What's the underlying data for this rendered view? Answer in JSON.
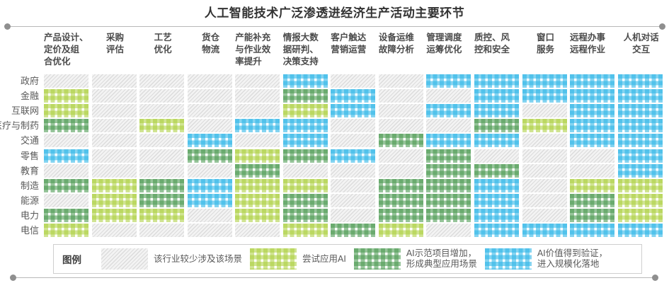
{
  "title": "人工智能技术广泛渗透进经济生产活动主要环节",
  "legend": {
    "label": "图例",
    "items": [
      {
        "key": "none",
        "label": "该行业较少涉及该场景"
      },
      {
        "key": "trial",
        "label": "尝试应用AI"
      },
      {
        "key": "demo",
        "label": "AI示范项目增加，\n形成典型应用场景"
      },
      {
        "key": "scale",
        "label": "AI价值得到验证，\n进入规模化落地"
      }
    ]
  },
  "colors": {
    "trial": "#a9cd39",
    "demo": "#4a9950",
    "scale": "#2cb5e7",
    "none_stripe": "#dcdcdc",
    "title_text": "#333333",
    "header_text": "#4a4a4a",
    "row_text": "#595959"
  },
  "chart_data": {
    "type": "heatmap",
    "title": "人工智能技术广泛渗透进经济生产活动主要环节",
    "legend_position": "bottom",
    "columns": [
      {
        "label": "产品设计、\n定价及组\n合优化",
        "align": "left"
      },
      {
        "label": "采购\n评估",
        "align": "center"
      },
      {
        "label": "工艺\n优化",
        "align": "center"
      },
      {
        "label": "货仓\n物流",
        "align": "center"
      },
      {
        "label": "产能补充\n与作业效\n率提升",
        "align": "left"
      },
      {
        "label": "情报大数\n据研判、\n决策支持",
        "align": "left"
      },
      {
        "label": "客户触达\n营销运营",
        "align": "left"
      },
      {
        "label": "设备运维\n故障分析",
        "align": "left"
      },
      {
        "label": "管理调度\n运筹优化",
        "align": "left"
      },
      {
        "label": "质控、风\n控和安全",
        "align": "left"
      },
      {
        "label": "窗口\n服务",
        "align": "center"
      },
      {
        "label": "远程办事\n远程作业",
        "align": "left"
      },
      {
        "label": "人机对话\n交互",
        "align": "center"
      }
    ],
    "rows": [
      "政府",
      "金融",
      "互联网",
      "医疗与制药",
      "交通",
      "零售",
      "教育",
      "制造",
      "能源",
      "电力",
      "电信"
    ],
    "categories": {
      "none": "该行业较少涉及该场景",
      "trial": "尝试应用AI",
      "demo": "AI示范项目增加，形成典型应用场景",
      "scale": "AI价值得到验证，进入规模化落地"
    },
    "matrix": [
      [
        "none",
        "none",
        "none",
        "none",
        "none",
        "scale",
        "none",
        "none",
        "scale",
        "scale",
        "scale",
        "scale",
        "scale"
      ],
      [
        "trial",
        "none",
        "none",
        "none",
        "none",
        "demo",
        "scale",
        "none",
        "none",
        "scale",
        "scale",
        "scale",
        "scale"
      ],
      [
        "trial",
        "none",
        "none",
        "none",
        "none",
        "trial",
        "scale",
        "none",
        "scale",
        "scale",
        "none",
        "scale",
        "scale"
      ],
      [
        "demo",
        "none",
        "trial",
        "none",
        "scale",
        "scale",
        "none",
        "none",
        "none",
        "demo",
        "trial",
        "scale",
        "scale"
      ],
      [
        "none",
        "none",
        "none",
        "scale",
        "none",
        "scale",
        "none",
        "demo",
        "scale",
        "scale",
        "none",
        "scale",
        "scale"
      ],
      [
        "scale",
        "none",
        "none",
        "demo",
        "trial",
        "demo",
        "scale",
        "none",
        "demo",
        "none",
        "none",
        "none",
        "scale"
      ],
      [
        "none",
        "none",
        "none",
        "none",
        "demo",
        "none",
        "none",
        "none",
        "demo",
        "demo",
        "none",
        "none",
        "scale"
      ],
      [
        "demo",
        "trial",
        "demo",
        "scale",
        "trial",
        "trial",
        "none",
        "demo",
        "demo",
        "scale",
        "none",
        "trial",
        "trial"
      ],
      [
        "none",
        "trial",
        "demo",
        "scale",
        "trial",
        "demo",
        "none",
        "demo",
        "demo",
        "scale",
        "none",
        "demo",
        "trial"
      ],
      [
        "demo",
        "trial",
        "trial",
        "none",
        "trial",
        "demo",
        "none",
        "demo",
        "demo",
        "scale",
        "none",
        "demo",
        "trial"
      ],
      [
        "trial",
        "none",
        "none",
        "none",
        "none",
        "trial",
        "demo",
        "trial",
        "none",
        "scale",
        "scale",
        "scale",
        "scale"
      ]
    ]
  }
}
